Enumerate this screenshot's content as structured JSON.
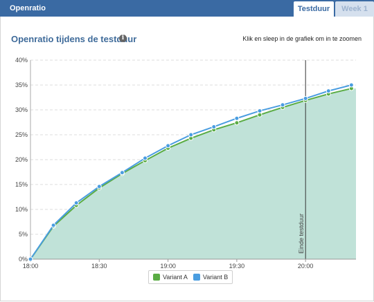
{
  "header": {
    "title": "Openratio",
    "tabs": [
      {
        "label": "Testduur",
        "active": true
      },
      {
        "label": "Week 1",
        "active": false
      }
    ]
  },
  "chart_header": {
    "title": "Openratio tijdens de testduur",
    "info_icon": "info-icon",
    "zoom_hint": "Klik en sleep in de grafiek om in te zoomen"
  },
  "colors": {
    "header_bg": "#3a6aa3",
    "variant_a": "#5aac44",
    "variant_b": "#4a9de0",
    "area_fill": "#c0e2d8"
  },
  "chart_data": {
    "type": "line",
    "title": "Openratio tijdens de testduur",
    "xlabel": "",
    "ylabel": "",
    "x": [
      "18:00",
      "18:10",
      "18:20",
      "18:30",
      "18:40",
      "18:50",
      "19:00",
      "19:10",
      "19:20",
      "19:30",
      "19:40",
      "19:50",
      "20:00",
      "20:10",
      "20:20"
    ],
    "x_range": [
      "18:00",
      "20:22"
    ],
    "x_ticks": [
      "18:00",
      "18:30",
      "19:00",
      "19:30",
      "20:00"
    ],
    "ylim": [
      0,
      40
    ],
    "y_ticks": [
      "0%",
      "5%",
      "10%",
      "15%",
      "20%",
      "25%",
      "30%",
      "35%",
      "40%"
    ],
    "grid": true,
    "legend_position": "bottom-center",
    "area_under": "Variant A",
    "series": [
      {
        "name": "Variant A",
        "values": [
          0,
          6.6,
          10.8,
          14.3,
          17.2,
          19.8,
          22.3,
          24.3,
          26.0,
          27.4,
          29.0,
          30.5,
          31.9,
          33.2,
          34.3
        ]
      },
      {
        "name": "Variant B",
        "values": [
          0,
          6.8,
          11.3,
          14.6,
          17.4,
          20.3,
          22.8,
          25.0,
          26.6,
          28.3,
          29.8,
          31.0,
          32.3,
          33.8,
          35.0
        ]
      }
    ],
    "annotations": [
      {
        "x": "20:00",
        "label": "Einde testduur"
      }
    ]
  }
}
